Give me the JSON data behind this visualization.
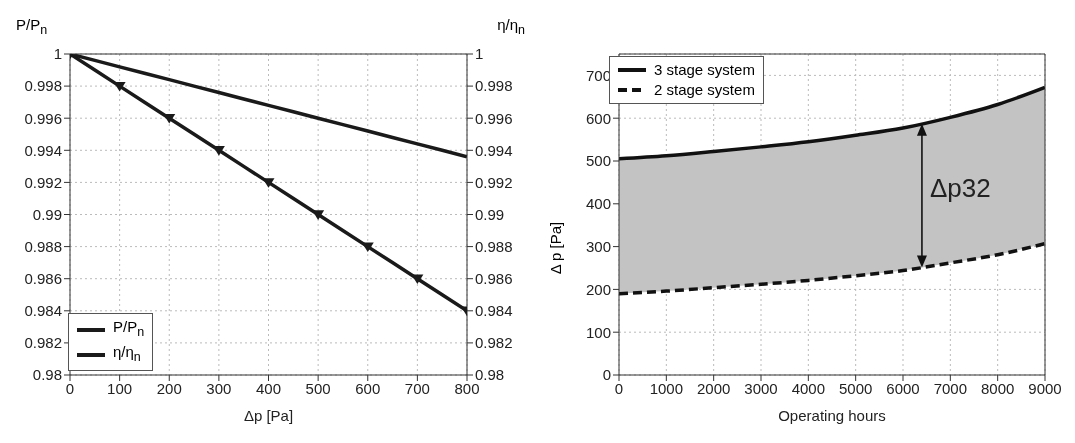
{
  "chart_data": [
    {
      "type": "line",
      "xlabel": "Δp [Pa]",
      "ylabel": "P/P$_{n}$",
      "y2label": "η/η$_{n}$",
      "x": [
        0,
        100,
        200,
        300,
        400,
        500,
        600,
        700,
        800
      ],
      "series": [
        {
          "name": "P/P$_{n}$",
          "color": "#1a1a1a",
          "marker": "triangle",
          "line_style": "solid",
          "values": [
            1,
            0.998,
            0.996,
            0.994,
            0.992,
            0.99,
            0.988,
            0.986,
            0.984
          ]
        },
        {
          "name": "η/η$_{n}$",
          "color": "#1a1a1a",
          "marker": "none",
          "line_style": "solid",
          "axis": "y2",
          "values": [
            1,
            0.9992,
            0.9984,
            0.9976,
            0.9968,
            0.996,
            0.9952,
            0.9944,
            0.9936
          ]
        }
      ],
      "xlim": [
        0,
        800
      ],
      "xticks": [
        0,
        100,
        200,
        300,
        400,
        500,
        600,
        700,
        800
      ],
      "ylim": [
        0.98,
        1
      ],
      "yticks": [
        0.98,
        0.982,
        0.984,
        0.986,
        0.988,
        0.99,
        0.992,
        0.994,
        0.996,
        0.998,
        1
      ],
      "y2lim": [
        0.98,
        1
      ],
      "y2ticks": [
        0.98,
        0.982,
        0.984,
        0.986,
        0.988,
        0.99,
        0.992,
        0.994,
        0.996,
        0.998,
        1
      ],
      "grid": true,
      "legend": "bottom left"
    },
    {
      "type": "line",
      "xlabel": "Operating hours",
      "ylabel": "Δ p [Pa]",
      "x": [
        0,
        1000,
        2000,
        3000,
        4000,
        5000,
        6000,
        7000,
        8000,
        9000
      ],
      "series": [
        {
          "name": "3 stage system",
          "color": "#111111",
          "marker": "none",
          "line_style": "solid",
          "values": [
            505,
            512,
            522,
            533,
            545,
            560,
            577,
            602,
            632,
            672
          ],
          "lower": [
            190,
            196,
            204,
            212,
            221,
            232,
            244,
            262,
            281,
            307
          ],
          "upper": [
            505,
            512,
            522,
            533,
            545,
            560,
            577,
            602,
            632,
            672
          ]
        },
        {
          "name": "2 stage system",
          "color": "#111111",
          "marker": "none",
          "line_style": "dashed",
          "values": [
            190,
            196,
            204,
            212,
            221,
            232,
            244,
            262,
            281,
            307
          ]
        }
      ],
      "xlim": [
        0,
        9000
      ],
      "xticks": [
        0,
        1000,
        2000,
        3000,
        4000,
        5000,
        6000,
        7000,
        8000,
        9000
      ],
      "ylim": [
        0,
        750
      ],
      "yticks": [
        0,
        100,
        200,
        300,
        400,
        500,
        600,
        700
      ],
      "annotations": [
        {
          "text": "Δp32",
          "x": 6400,
          "y": 588
        }
      ],
      "grid": true,
      "legend": "top left"
    }
  ]
}
